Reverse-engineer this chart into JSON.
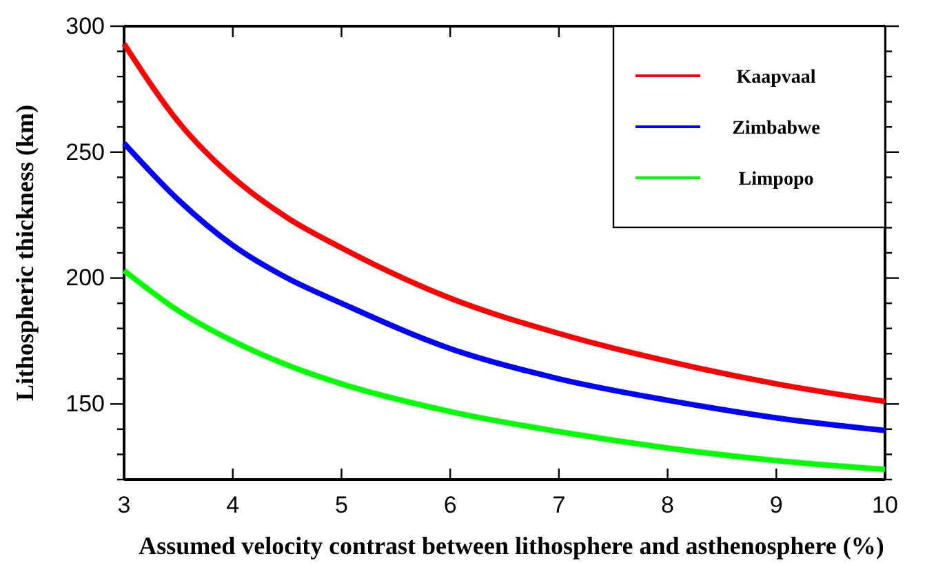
{
  "chart_data": {
    "type": "line",
    "xlabel": "Assumed velocity contrast between lithosphere and asthenosphere (%)",
    "ylabel": "Lithospheric thickness (km)",
    "x": [
      3,
      3.5,
      4,
      4.5,
      5,
      6,
      7,
      8,
      9,
      10
    ],
    "series": [
      {
        "name": "Kaapvaal",
        "color": "#ff0000",
        "values": [
          293,
          262,
          240,
          224,
          212,
          192,
          178,
          167,
          158,
          151
        ]
      },
      {
        "name": "Zimbabwe",
        "color": "#0000ff",
        "values": [
          253.5,
          231,
          213,
          200,
          190,
          172,
          160,
          151.5,
          144.5,
          139.5
        ]
      },
      {
        "name": "Limpopo",
        "color": "#00ff00",
        "values": [
          203,
          187,
          175,
          165.5,
          158,
          147,
          139,
          132.5,
          127.5,
          124
        ]
      }
    ],
    "xlim": [
      3,
      10
    ],
    "xticks": [
      3,
      4,
      5,
      6,
      7,
      8,
      9,
      10
    ],
    "ylim": [
      120,
      300
    ],
    "yticks": [
      {
        "value": 120,
        "label": null
      },
      {
        "value": 130,
        "label": null
      },
      {
        "value": 140,
        "label": null
      },
      150,
      {
        "value": 160,
        "label": null
      },
      {
        "value": 170,
        "label": null
      },
      {
        "value": 180,
        "label": null
      },
      {
        "value": 190,
        "label": null
      },
      200,
      {
        "value": 210,
        "label": null
      },
      {
        "value": 220,
        "label": null
      },
      {
        "value": 230,
        "label": null
      },
      {
        "value": 240,
        "label": null
      },
      250,
      {
        "value": 260,
        "label": null
      },
      {
        "value": 270,
        "label": null
      },
      {
        "value": 280,
        "label": null
      },
      {
        "value": 290,
        "label": null
      },
      300
    ],
    "grid": false,
    "legend": "top right",
    "line_style": "solid",
    "marker": "none"
  }
}
